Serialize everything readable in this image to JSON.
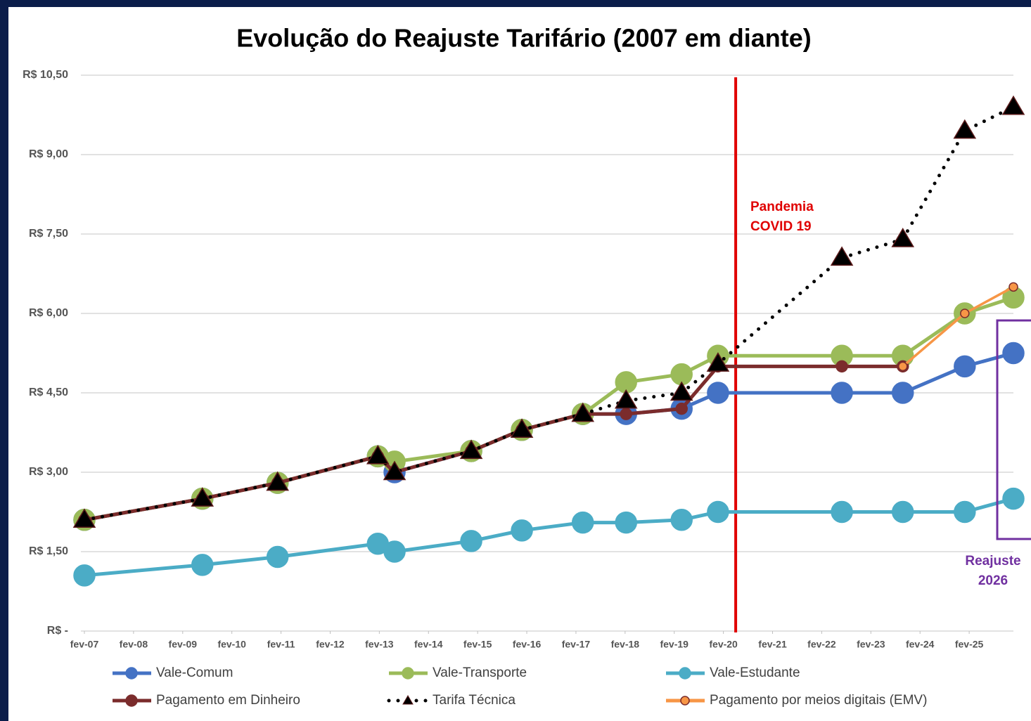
{
  "chart_data": {
    "type": "line",
    "title": "Evolução do Reajuste Tarifário (2007 em diante)",
    "x": [
      0,
      2.4,
      3.93,
      5.97,
      6.31,
      7.87,
      8.9,
      10.14,
      11.02,
      12.15,
      12.89,
      15.41,
      16.65,
      17.91,
      18.9
    ],
    "xlim": [
      0,
      18.9
    ],
    "xticks": [
      {
        "value": 0,
        "label": "fev-07"
      },
      {
        "value": 1,
        "label": "fev-08"
      },
      {
        "value": 2,
        "label": "fev-09"
      },
      {
        "value": 3,
        "label": "fev-10"
      },
      {
        "value": 4,
        "label": "fev-11"
      },
      {
        "value": 5,
        "label": "fev-12"
      },
      {
        "value": 6,
        "label": "fev-13"
      },
      {
        "value": 7,
        "label": "fev-14"
      },
      {
        "value": 8,
        "label": "fev-15"
      },
      {
        "value": 9,
        "label": "fev-16"
      },
      {
        "value": 10,
        "label": "fev-17"
      },
      {
        "value": 11,
        "label": "fev-18"
      },
      {
        "value": 12,
        "label": "fev-19"
      },
      {
        "value": 13,
        "label": "fev-20"
      },
      {
        "value": 14,
        "label": "fev-21"
      },
      {
        "value": 15,
        "label": "fev-22"
      },
      {
        "value": 16,
        "label": "fev-23"
      },
      {
        "value": 17,
        "label": "fev-24"
      },
      {
        "value": 18,
        "label": "fev-25"
      }
    ],
    "ylim": [
      0,
      10.5
    ],
    "yticks": [
      {
        "value": 0,
        "label": "R$ -"
      },
      {
        "value": 1.5,
        "label": "R$ 1,50"
      },
      {
        "value": 3,
        "label": "R$ 3,00"
      },
      {
        "value": 4.5,
        "label": "R$ 4,50"
      },
      {
        "value": 6,
        "label": "R$ 6,00"
      },
      {
        "value": 7.5,
        "label": "R$ 7,50"
      },
      {
        "value": 9,
        "label": "R$ 9,00"
      },
      {
        "value": 10.5,
        "label": "R$ 10,50"
      }
    ],
    "grid": true,
    "series": [
      {
        "name": "Vale-Estudante",
        "color": "#4bacc6",
        "marker": "circle",
        "values": [
          1.05,
          1.25,
          1.4,
          1.65,
          1.5,
          1.7,
          1.9,
          2.05,
          2.05,
          2.1,
          2.25,
          2.25,
          2.25,
          2.25,
          2.5
        ]
      },
      {
        "name": "Vale-Comum",
        "color": "#4472c4",
        "marker": "circle",
        "values": [
          2.1,
          2.5,
          2.8,
          3.3,
          3.0,
          3.4,
          3.8,
          4.1,
          4.1,
          4.2,
          4.5,
          4.5,
          4.5,
          5.0,
          5.25
        ]
      },
      {
        "name": "Vale-Transporte",
        "color": "#9bbb59",
        "marker": "circle",
        "values": [
          2.1,
          2.5,
          2.8,
          3.3,
          3.2,
          3.4,
          3.8,
          4.1,
          4.7,
          4.85,
          5.2,
          5.2,
          5.2,
          6.0,
          6.3
        ]
      },
      {
        "name": "Pagamento em Dinheiro",
        "color": "#7b2c2c",
        "marker": "small-circle",
        "values": [
          2.1,
          2.5,
          2.8,
          3.3,
          3.0,
          3.4,
          3.8,
          4.1,
          4.1,
          4.2,
          5.0,
          5.0,
          5.0,
          null,
          null
        ]
      },
      {
        "name": "Pagamento por meios digitais (EMV)",
        "color": "#f79646",
        "marker": "tiny-circle",
        "values": [
          null,
          null,
          null,
          null,
          null,
          null,
          null,
          null,
          null,
          null,
          null,
          null,
          5.0,
          6.0,
          6.5
        ]
      },
      {
        "name": "Tarifa Técnica",
        "color": "#000000",
        "marker": "triangle",
        "dotted": true,
        "values": [
          2.1,
          2.5,
          2.8,
          3.3,
          3.0,
          3.4,
          3.8,
          4.1,
          4.35,
          4.5,
          5.05,
          7.05,
          7.4,
          9.45,
          9.9
        ]
      }
    ],
    "legend_order": [
      1,
      2,
      0,
      3,
      5,
      4
    ],
    "covid_line": {
      "x": 13.25,
      "color": "#e00000",
      "label": [
        "Pandemia",
        "COVID 19"
      ]
    },
    "reajuste_box": {
      "color": "#7030a0",
      "label": [
        "Reajuste",
        "2026"
      ]
    }
  }
}
